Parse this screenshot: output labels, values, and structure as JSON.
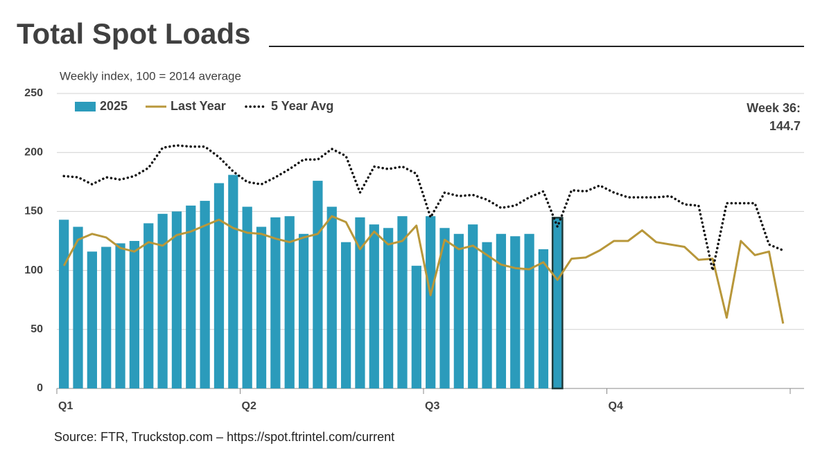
{
  "chart_data": {
    "type": "bar_line",
    "title": "Total Spot Loads",
    "subtitle": "Weekly index, 100 = 2014 average",
    "source": "Source: FTR, Truckstop.com – https://spot.ftrintel.com/current",
    "annotation": "Week 36:",
    "quarters": [
      "Q1",
      "Q2",
      "Q3",
      "Q4"
    ],
    "categories": [
      null,
      null,
      null,
      null,
      null,
      null,
      null,
      null,
      null,
      null,
      null,
      null,
      null,
      null,
      null,
      null,
      null,
      null,
      null,
      null,
      null,
      null,
      null,
      null,
      null,
      null,
      null,
      null,
      null,
      null,
      null,
      null,
      null,
      null,
      null,
      null,
      null,
      null,
      null,
      null,
      null,
      null,
      null,
      null,
      null,
      null,
      null,
      null,
      null,
      null,
      null,
      null
    ],
    "ylim": [
      0,
      250
    ],
    "yticks": [
      0,
      50,
      100,
      150,
      200,
      250
    ],
    "grid": true,
    "legend": "top-left",
    "series": [
      {
        "name": "2025",
        "kind": "bar",
        "color": "#2b9bbb",
        "values": [
          143,
          137,
          116,
          120,
          123,
          125,
          140,
          148,
          150,
          155,
          159,
          174,
          181,
          154,
          137,
          145,
          146,
          131,
          176,
          154,
          124,
          145,
          139,
          136,
          146,
          104,
          146,
          136,
          131,
          139,
          124,
          131,
          129,
          131,
          118,
          144.7,
          null,
          null,
          null,
          null,
          null,
          null,
          null,
          null,
          null,
          null,
          null,
          null,
          null,
          null,
          null,
          null
        ]
      },
      {
        "name": "Last Year",
        "kind": "line",
        "color": "#b8973a",
        "values": [
          104,
          126,
          131,
          128,
          119,
          116,
          124,
          121,
          130,
          133,
          138,
          143,
          136,
          132,
          131,
          127,
          124,
          128,
          131,
          146,
          141,
          118,
          133,
          122,
          125,
          138,
          79,
          126,
          118,
          121,
          113,
          105,
          102,
          101,
          107,
          92,
          110,
          111,
          117,
          125,
          125,
          134,
          124,
          122,
          120,
          109,
          110,
          60,
          125,
          113,
          116,
          55
        ]
      },
      {
        "name": "5 Year Avg",
        "kind": "dotted",
        "color": "#111111",
        "values": [
          180,
          179,
          173,
          179,
          177,
          180,
          187,
          204,
          206,
          205,
          205,
          196,
          184,
          175,
          173,
          179,
          186,
          194,
          194,
          203,
          197,
          166,
          188,
          186,
          188,
          182,
          145,
          166,
          163,
          164,
          160,
          153,
          155,
          162,
          167,
          137,
          168,
          167,
          172,
          166,
          162,
          162,
          162,
          163,
          156,
          155,
          100,
          157,
          157,
          157,
          122,
          117
        ]
      }
    ]
  }
}
